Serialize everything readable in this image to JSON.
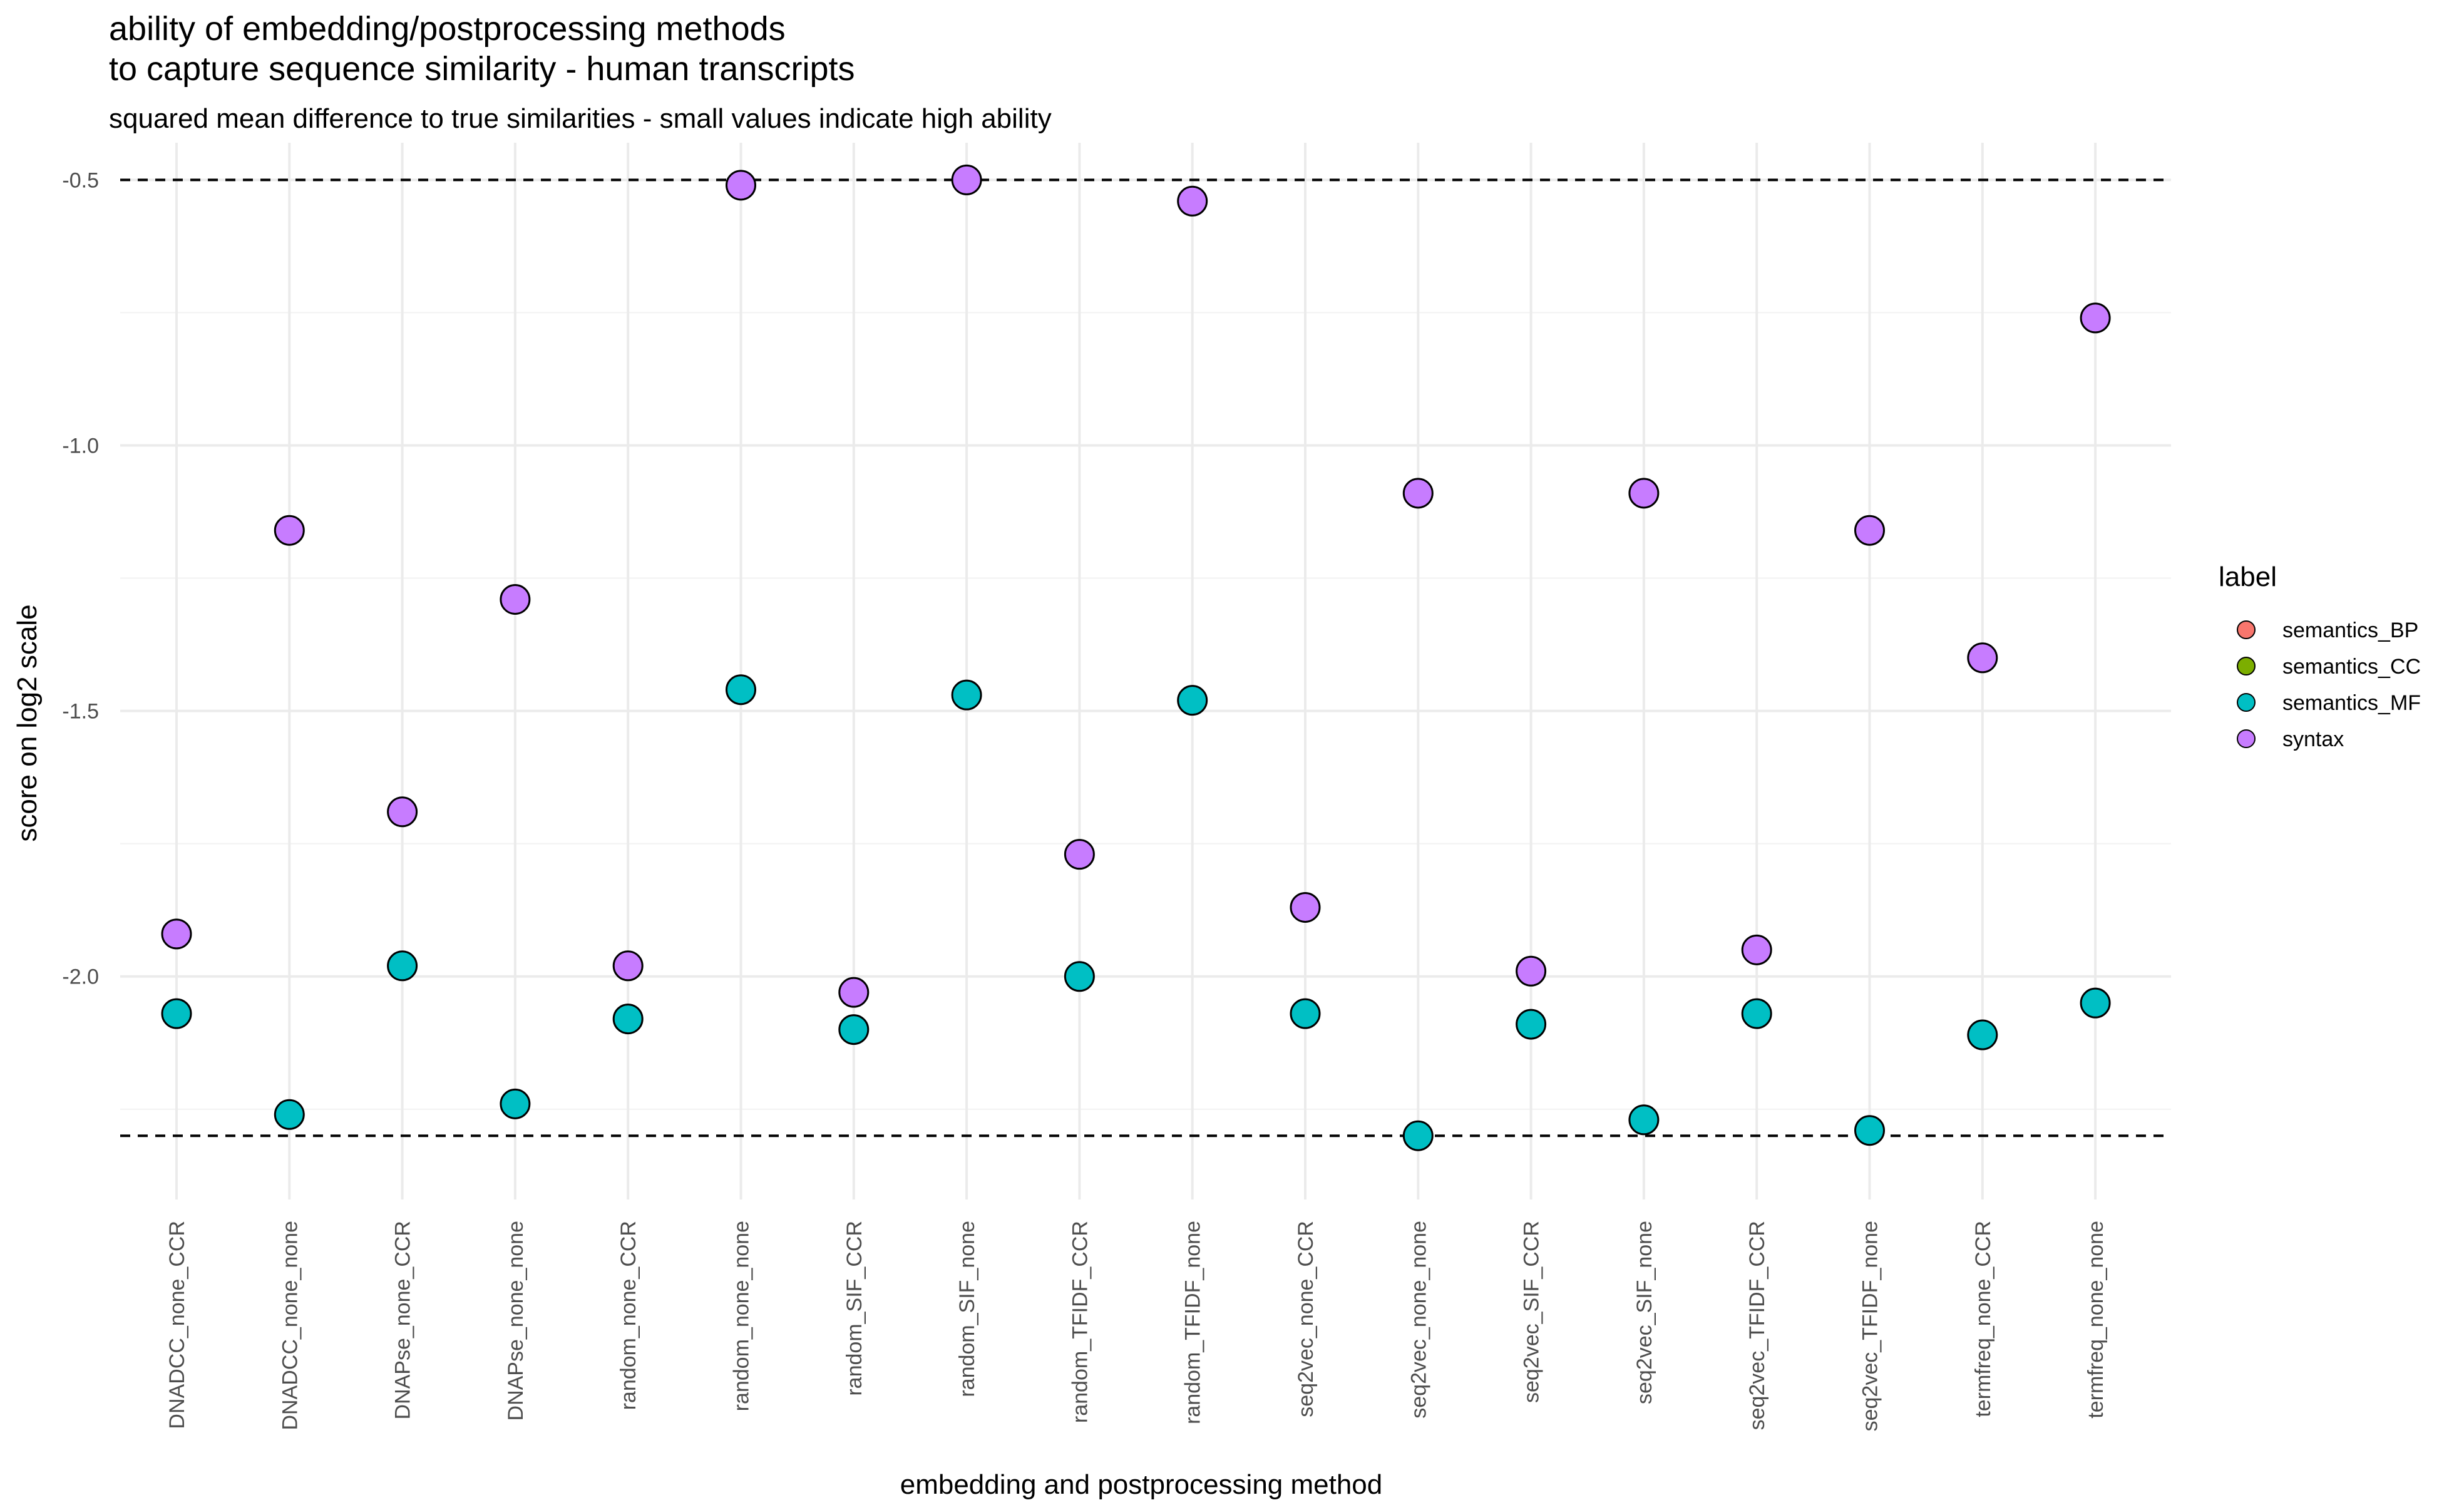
{
  "chart_data": {
    "type": "scatter",
    "title_lines": [
      "ability of embedding/postprocessing methods",
      "to capture sequence similarity - human transcripts"
    ],
    "subtitle": "squared mean difference to true similarities - small values indicate high ability",
    "xlabel": "embedding and postprocessing method",
    "ylabel": "score on log2 scale",
    "y_scale": "log2",
    "ylim": [
      -2.42,
      -0.43
    ],
    "y_ticks": [
      -0.5,
      -1.0,
      -1.5,
      -2.0
    ],
    "y_tick_labels": [
      "-0.5",
      "-1.0",
      "-1.5",
      "-2.0"
    ],
    "grid": true,
    "reference_lines": [
      -0.5,
      -2.3
    ],
    "categories": [
      "DNADCC_none_CCR",
      "DNADCC_none_none",
      "DNAPse_none_CCR",
      "DNAPse_none_none",
      "random_none_CCR",
      "random_none_none",
      "random_SIF_CCR",
      "random_SIF_none",
      "random_TFIDF_CCR",
      "random_TFIDF_none",
      "seq2vec_none_CCR",
      "seq2vec_none_none",
      "seq2vec_SIF_CCR",
      "seq2vec_SIF_none",
      "seq2vec_TFIDF_CCR",
      "seq2vec_TFIDF_none",
      "termfreq_none_CCR",
      "termfreq_none_none"
    ],
    "legend_title": "label",
    "legend_position": "right",
    "series": [
      {
        "name": "semantics_BP",
        "color": "#F8766D",
        "values": []
      },
      {
        "name": "semantics_CC",
        "color": "#7CAE00",
        "values": []
      },
      {
        "name": "semantics_MF",
        "color": "#00BFC4",
        "values": [
          -2.07,
          -2.26,
          -1.98,
          -2.24,
          -2.08,
          -1.46,
          -2.1,
          -1.47,
          -2.0,
          -1.48,
          -2.07,
          -2.3,
          -2.09,
          -2.27,
          -2.07,
          -2.29,
          -2.11,
          -2.05
        ]
      },
      {
        "name": "syntax",
        "color": "#C77CFF",
        "values": [
          -1.92,
          -1.16,
          -1.69,
          -1.29,
          -1.98,
          -0.51,
          -2.03,
          -0.5,
          -1.77,
          -0.54,
          -1.87,
          -1.09,
          -1.99,
          -1.09,
          -1.95,
          -1.16,
          -1.4,
          -0.76
        ]
      }
    ]
  }
}
